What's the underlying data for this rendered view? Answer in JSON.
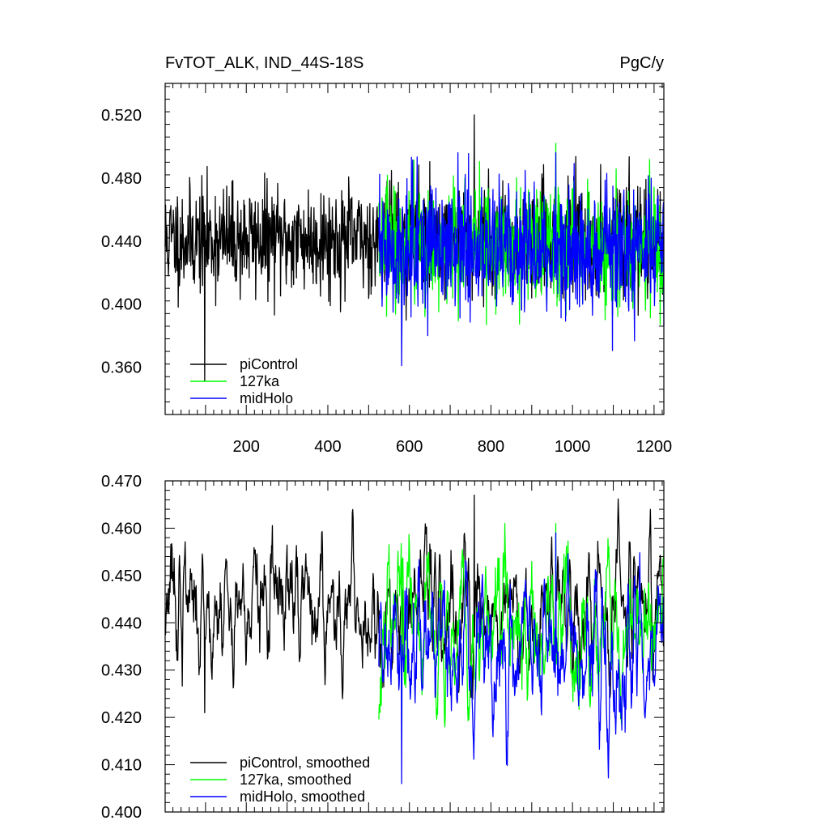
{
  "colors": {
    "background": "#ffffff",
    "axis": "#000000",
    "piControl": "#000000",
    "127ka": "#00ff00",
    "midHolo": "#0000ff"
  },
  "chart_data": [
    {
      "type": "line",
      "title": "FvTOT_ALK, IND_44S-18S",
      "units": "PgC/y",
      "xlabel": "",
      "ylabel": "",
      "xlim": [
        1,
        1224
      ],
      "ylim": [
        0.33,
        0.54
      ],
      "xticks": [
        200,
        400,
        600,
        800,
        1000,
        1200
      ],
      "xtick_labels": [
        "200",
        "400",
        "600",
        "800",
        "1000",
        "1200"
      ],
      "yticks": [
        0.36,
        0.4,
        0.44,
        0.48,
        0.52
      ],
      "ytick_labels": [
        "0.360",
        "0.400",
        "0.440",
        "0.480",
        "0.520"
      ],
      "legend_position": "bottom-left",
      "legend": [
        "piControl",
        "127ka",
        "midHolo"
      ],
      "series": [
        {
          "name": "piControl",
          "color": "#000000",
          "x_range": [
            1,
            1224
          ],
          "mean": 0.441,
          "std_dev": 0.017,
          "min": 0.351,
          "max": 0.52
        },
        {
          "name": "127ka",
          "color": "#00ff00",
          "x_range": [
            525,
            1224
          ],
          "mean": 0.437,
          "std_dev": 0.019,
          "min": 0.387,
          "max": 0.502
        },
        {
          "name": "midHolo",
          "color": "#0000ff",
          "x_range": [
            525,
            1224
          ],
          "mean": 0.435,
          "std_dev": 0.019,
          "min": 0.361,
          "max": 0.496
        }
      ]
    },
    {
      "type": "line",
      "title": "",
      "xlabel": "",
      "ylabel": "",
      "xlim": [
        1,
        1224
      ],
      "ylim": [
        0.4,
        0.47
      ],
      "yticks": [
        0.4,
        0.41,
        0.42,
        0.43,
        0.44,
        0.45,
        0.46,
        0.47
      ],
      "ytick_labels": [
        "0.400",
        "0.410",
        "0.420",
        "0.430",
        "0.440",
        "0.450",
        "0.460",
        "0.470"
      ],
      "legend_position": "bottom-left",
      "legend": [
        "piControl, smoothed",
        "127ka, smoothed",
        "midHolo, smoothed"
      ],
      "series": [
        {
          "name": "piControl, smoothed",
          "color": "#000000",
          "x_range": [
            1,
            1224
          ],
          "mean": 0.443,
          "std_dev": 0.007,
          "min": 0.421,
          "max": 0.467
        },
        {
          "name": "127ka, smoothed",
          "color": "#00ff00",
          "x_range": [
            525,
            1224
          ],
          "mean": 0.439,
          "std_dev": 0.008,
          "min": 0.418,
          "max": 0.461
        },
        {
          "name": "midHolo, smoothed",
          "color": "#0000ff",
          "x_range": [
            525,
            1224
          ],
          "mean": 0.434,
          "std_dev": 0.008,
          "min": 0.406,
          "max": 0.459
        }
      ]
    }
  ]
}
